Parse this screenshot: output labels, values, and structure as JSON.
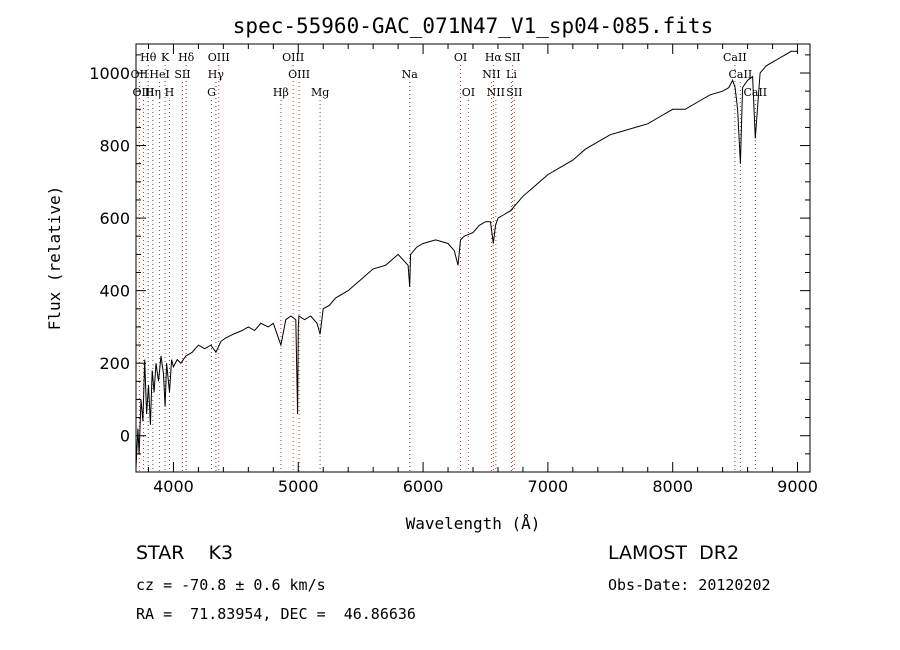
{
  "chart_data": {
    "type": "line",
    "title": "spec-55960-GAC_071N47_V1_sp04-085.fits",
    "xlabel": "Wavelength (Å)",
    "ylabel": "Flux (relative)",
    "xlim": [
      3700,
      9100
    ],
    "ylim": [
      -100,
      1080
    ],
    "x_ticks": [
      4000,
      5000,
      6000,
      7000,
      8000,
      9000
    ],
    "y_ticks": [
      0,
      200,
      400,
      600,
      800,
      1000
    ],
    "grid": false,
    "series": [
      {
        "x": [
          3700,
          3715,
          3725,
          3740,
          3755,
          3770,
          3785,
          3800,
          3815,
          3830,
          3845,
          3860,
          3880,
          3900,
          3920,
          3933,
          3945,
          3968,
          3985,
          4000,
          4030,
          4060,
          4100,
          4150,
          4200,
          4250,
          4300,
          4340,
          4380,
          4420,
          4480,
          4550,
          4600,
          4650,
          4700,
          4760,
          4800,
          4861,
          4900,
          4940,
          4980,
          4995,
          5000,
          5005,
          5050,
          5100,
          5150,
          5175,
          5200,
          5250,
          5300,
          5400,
          5500,
          5600,
          5700,
          5800,
          5880,
          5893,
          5900,
          5950,
          6000,
          6100,
          6200,
          6250,
          6280,
          6300,
          6330,
          6400,
          6450,
          6500,
          6540,
          6563,
          6580,
          6600,
          6650,
          6700,
          6750,
          6800,
          6900,
          7000,
          7100,
          7200,
          7300,
          7400,
          7500,
          7600,
          7700,
          7800,
          7900,
          8000,
          8100,
          8200,
          8300,
          8400,
          8450,
          8480,
          8500,
          8520,
          8542,
          8560,
          8600,
          8640,
          8662,
          8700,
          8750,
          8800,
          8850,
          8900,
          8950,
          9000
        ],
        "y": [
          -90,
          20,
          -50,
          100,
          40,
          210,
          60,
          140,
          30,
          180,
          120,
          200,
          150,
          220,
          170,
          80,
          200,
          120,
          210,
          190,
          210,
          200,
          220,
          230,
          250,
          240,
          250,
          230,
          260,
          270,
          280,
          290,
          300,
          290,
          310,
          300,
          310,
          250,
          320,
          330,
          320,
          60,
          300,
          330,
          320,
          330,
          310,
          280,
          350,
          360,
          380,
          400,
          430,
          460,
          470,
          500,
          470,
          410,
          500,
          520,
          530,
          540,
          530,
          510,
          470,
          540,
          550,
          560,
          580,
          590,
          590,
          530,
          580,
          600,
          610,
          620,
          640,
          660,
          690,
          720,
          740,
          760,
          790,
          810,
          830,
          840,
          850,
          860,
          880,
          900,
          900,
          920,
          940,
          950,
          960,
          980,
          960,
          900,
          750,
          960,
          980,
          990,
          820,
          1000,
          1020,
          1030,
          1040,
          1050,
          1060,
          1060
        ]
      }
    ],
    "line_markers": [
      {
        "label": "Hθ",
        "wavelength": 3798
      },
      {
        "label": "K",
        "wavelength": 3933
      },
      {
        "label": "Hδ",
        "wavelength": 4102
      },
      {
        "label": "OIII",
        "wavelength": 4363
      },
      {
        "label": "OIII",
        "wavelength": 4959
      },
      {
        "label": "OI",
        "wavelength": 6300
      },
      {
        "label": "Hα",
        "wavelength": 6563
      },
      {
        "label": "SII",
        "wavelength": 6716
      },
      {
        "label": "CaII",
        "wavelength": 8498
      },
      {
        "label": "OII",
        "wavelength": 3727
      },
      {
        "label": "HeI",
        "wavelength": 3889
      },
      {
        "label": "SII",
        "wavelength": 4072
      },
      {
        "label": "Hγ",
        "wavelength": 4340
      },
      {
        "label": "OIII",
        "wavelength": 5007
      },
      {
        "label": "Na",
        "wavelength": 5893
      },
      {
        "label": "NII",
        "wavelength": 6548
      },
      {
        "label": "Li",
        "wavelength": 6708
      },
      {
        "label": "CaII",
        "wavelength": 8542
      },
      {
        "label": "OIII",
        "wavelength": 3760
      },
      {
        "label": "Hη",
        "wavelength": 3835
      },
      {
        "label": "H",
        "wavelength": 3968
      },
      {
        "label": "G",
        "wavelength": 4305
      },
      {
        "label": "Hβ",
        "wavelength": 4861
      },
      {
        "label": "Mg",
        "wavelength": 5175
      },
      {
        "label": "OI",
        "wavelength": 6363
      },
      {
        "label": "NII",
        "wavelength": 6583
      },
      {
        "label": "SII",
        "wavelength": 6731
      },
      {
        "label": "CaII",
        "wavelength": 8662
      }
    ]
  },
  "info": {
    "class": "STAR    K3",
    "survey": "LAMOST  DR2",
    "cz": "cz = -70.8 ± 0.6 km/s",
    "obs_date": "Obs-Date: 20120202",
    "radec": "RA =  71.83954, DEC =  46.86636"
  },
  "colors": {
    "spectrum": "#000000",
    "emission_marker": "#c0392b",
    "absorption_marker": "#555555"
  }
}
